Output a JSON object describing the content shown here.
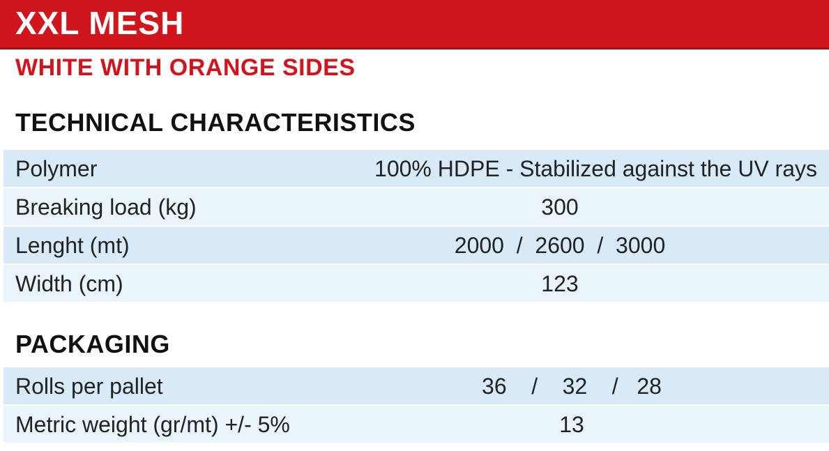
{
  "header": {
    "title": "XXL MESH",
    "subtitle": "WHITE WITH ORANGE SIDES"
  },
  "sections": [
    {
      "title": "TECHNICAL CHARACTERISTICS",
      "rows": [
        [
          "Polymer",
          "100% HDPE - Stabilized against the UV rays"
        ],
        [
          "Breaking load (kg)",
          "300"
        ],
        [
          "Lenght (mt)",
          "2000  /  2600  /  3000"
        ],
        [
          "Width (cm)",
          "123"
        ]
      ]
    },
    {
      "title": "PACKAGING",
      "rows": [
        [
          "Rolls per pallet",
          "36    /    32    /   28"
        ],
        [
          "Metric weight (gr/mt) +/- 5%",
          "13"
        ]
      ]
    }
  ]
}
